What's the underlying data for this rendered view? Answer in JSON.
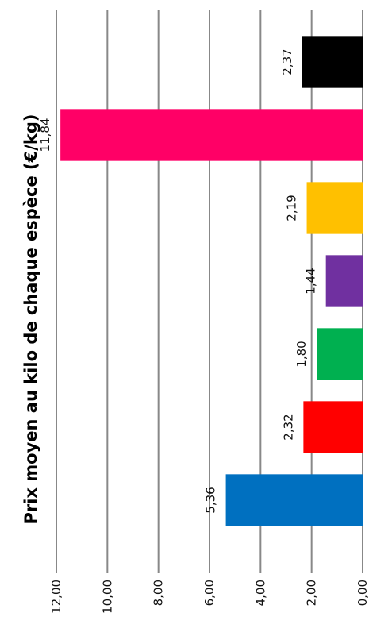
{
  "chart_data": {
    "type": "bar",
    "orientation": "horizontal",
    "title": "Prix moyen au kilo de chaque espèce (€/kg)",
    "xlabel": "",
    "ylabel": "",
    "xlim": [
      0,
      12
    ],
    "ticks": [
      "0,00",
      "2,00",
      "4,00",
      "6,00",
      "8,00",
      "10,00",
      "12,00"
    ],
    "tick_values": [
      0,
      2,
      4,
      6,
      8,
      10,
      12
    ],
    "grid": true,
    "legend": "none",
    "bars": [
      {
        "value": 5.36,
        "label": "5,36",
        "color": "#0070C0"
      },
      {
        "value": 2.32,
        "label": "2,32",
        "color": "#FF0000"
      },
      {
        "value": 1.8,
        "label": "1,80",
        "color": "#00B050"
      },
      {
        "value": 1.44,
        "label": "1,44",
        "color": "#7030A0"
      },
      {
        "value": 2.19,
        "label": "2,19",
        "color": "#FFC000"
      },
      {
        "value": 11.84,
        "label": "11,84",
        "color": "#FF0066"
      },
      {
        "value": 2.37,
        "label": "2,37",
        "color": "#000000"
      }
    ]
  }
}
